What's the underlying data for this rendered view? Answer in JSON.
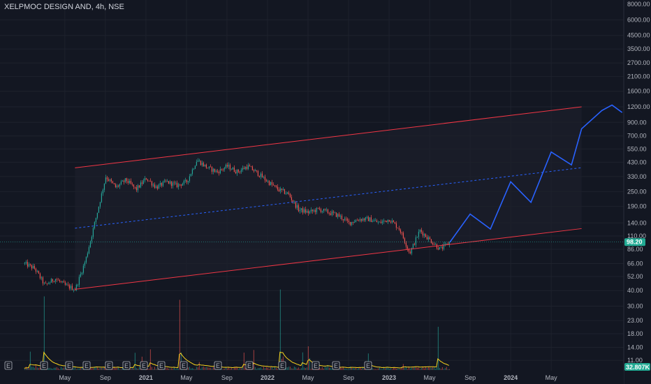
{
  "header": {
    "symbol": "XELPMOC DESIGN AND",
    "interval": "4h",
    "exchange": "NSE"
  },
  "chart_data": {
    "type": "candlestick",
    "y_scale": "log",
    "ylim": [
      11,
      9000
    ],
    "y_ticks": [
      {
        "v": 8000,
        "label": "8000.00"
      },
      {
        "v": 6000,
        "label": "6000.00"
      },
      {
        "v": 4500,
        "label": "4500.00"
      },
      {
        "v": 3500,
        "label": "3500.00"
      },
      {
        "v": 2700,
        "label": "2700.00"
      },
      {
        "v": 2100,
        "label": "2100.00"
      },
      {
        "v": 1600,
        "label": "1600.00"
      },
      {
        "v": 1200,
        "label": "1200.00"
      },
      {
        "v": 900,
        "label": "900.00"
      },
      {
        "v": 700,
        "label": "700.00"
      },
      {
        "v": 550,
        "label": "550.00"
      },
      {
        "v": 430,
        "label": "430.00"
      },
      {
        "v": 330,
        "label": "330.00"
      },
      {
        "v": 250,
        "label": "250.00"
      },
      {
        "v": 190,
        "label": "190.00"
      },
      {
        "v": 140,
        "label": "140.00"
      },
      {
        "v": 110,
        "label": "110.00"
      },
      {
        "v": 86,
        "label": "86.00"
      },
      {
        "v": 66,
        "label": "66.00"
      },
      {
        "v": 52,
        "label": "52.00"
      },
      {
        "v": 40,
        "label": "40.00"
      },
      {
        "v": 30,
        "label": "30.00"
      },
      {
        "v": 23,
        "label": "23.00"
      },
      {
        "v": 18,
        "label": "18.00"
      },
      {
        "v": 14,
        "label": "14.00"
      },
      {
        "v": 11,
        "label": "11.00"
      }
    ],
    "x_ticks": [
      "May",
      "Sep",
      "2021",
      "May",
      "Sep",
      "2022",
      "May",
      "Sep",
      "2023",
      "May",
      "Sep",
      "2024",
      "May"
    ],
    "bold_x_ticks": [
      "2021",
      "2022",
      "2023",
      "2024"
    ],
    "last_price": {
      "value": 98.2,
      "label": "98.20"
    },
    "volume_label": "32.807K",
    "earnings_marker": "E",
    "earnings_marker_count": 15,
    "colors": {
      "up": "#26a69a",
      "down": "#ef5350",
      "channel": "#f23645",
      "midline": "#2962ff",
      "projection": "#2962ff",
      "background": "#131722",
      "volume_ma": "#f7d21e",
      "volume_tag": "#22ab94"
    },
    "channel": {
      "upper": [
        {
          "date": "2020-06",
          "price": 388
        },
        {
          "date": "2024-08",
          "price": 1200
        }
      ],
      "lower": [
        {
          "date": "2020-06",
          "price": 41
        },
        {
          "date": "2024-08",
          "price": 126
        }
      ],
      "middle": [
        {
          "date": "2020-06",
          "price": 127
        },
        {
          "date": "2024-08",
          "price": 389
        }
      ]
    },
    "price_path": [
      [
        "2020-01",
        66
      ],
      [
        "2020-02",
        60
      ],
      [
        "2020-03",
        44
      ],
      [
        "2020-04",
        50
      ],
      [
        "2020-05",
        44
      ],
      [
        "2020-06",
        41
      ],
      [
        "2020-07",
        70
      ],
      [
        "2020-08",
        150
      ],
      [
        "2020-09",
        330
      ],
      [
        "2020-10",
        270
      ],
      [
        "2020-11",
        310
      ],
      [
        "2020-12",
        260
      ],
      [
        "2021-01",
        320
      ],
      [
        "2021-02",
        270
      ],
      [
        "2021-03",
        300
      ],
      [
        "2021-04",
        280
      ],
      [
        "2021-05",
        300
      ],
      [
        "2021-06",
        450
      ],
      [
        "2021-07",
        390
      ],
      [
        "2021-08",
        360
      ],
      [
        "2021-09",
        400
      ],
      [
        "2021-10",
        360
      ],
      [
        "2021-11",
        400
      ],
      [
        "2021-12",
        350
      ],
      [
        "2022-01",
        300
      ],
      [
        "2022-02",
        260
      ],
      [
        "2022-03",
        240
      ],
      [
        "2022-04",
        180
      ],
      [
        "2022-05",
        170
      ],
      [
        "2022-06",
        180
      ],
      [
        "2022-07",
        170
      ],
      [
        "2022-08",
        160
      ],
      [
        "2022-09",
        140
      ],
      [
        "2022-10",
        150
      ],
      [
        "2022-11",
        150
      ],
      [
        "2022-12",
        140
      ],
      [
        "2023-01",
        150
      ],
      [
        "2023-02",
        125
      ],
      [
        "2023-03",
        80
      ],
      [
        "2023-04",
        122
      ],
      [
        "2023-05",
        102
      ],
      [
        "2023-06",
        86
      ],
      [
        "2023-07",
        98
      ]
    ],
    "projection_path": [
      [
        "2023-07",
        98
      ],
      [
        "2023-09",
        165
      ],
      [
        "2023-11",
        125
      ],
      [
        "2024-01",
        300
      ],
      [
        "2024-03",
        205
      ],
      [
        "2024-05",
        520
      ],
      [
        "2024-07",
        410
      ],
      [
        "2024-08",
        800
      ],
      [
        "2024-10",
        1120
      ],
      [
        "2024-11",
        1240
      ],
      [
        "2024-12",
        1080
      ]
    ]
  }
}
